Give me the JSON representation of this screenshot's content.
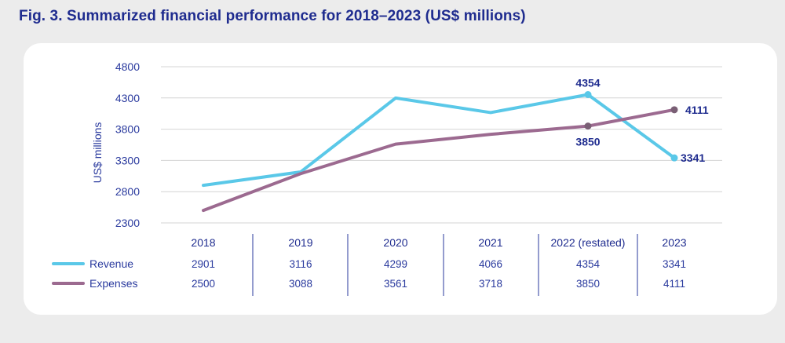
{
  "figure": {
    "title": "Fig. 3. Summarized financial performance for 2018–2023 (US$ millions)"
  },
  "colors": {
    "revenue": "#5ac8e8",
    "expenses": "#9c6a90",
    "expenses_marker": "#7a5f75",
    "text": "#2a3a9e",
    "gridline": "#d4d4d4",
    "divider": "#2a3a9e"
  },
  "chart_data": {
    "type": "line",
    "title": "Fig. 3. Summarized financial performance for 2018–2023 (US$ millions)",
    "ylabel": "US$ millions",
    "xlabel": "",
    "categories": [
      "2018",
      "2019",
      "2020",
      "2021",
      "2022 (restated)",
      "2023"
    ],
    "yticks": [
      2300,
      2800,
      3300,
      3800,
      4300,
      4800
    ],
    "ylim": [
      2300,
      4800
    ],
    "grid": true,
    "legend_position": "bottom-left (table rows)",
    "series": [
      {
        "name": "Revenue",
        "values": [
          2901,
          3116,
          4299,
          4066,
          4354,
          3341
        ]
      },
      {
        "name": "Expenses",
        "values": [
          2500,
          3088,
          3561,
          3718,
          3850,
          4111
        ]
      }
    ],
    "annotations": [
      {
        "series": "Revenue",
        "category": "2022 (restated)",
        "label": "4354"
      },
      {
        "series": "Revenue",
        "category": "2023",
        "label": "3341"
      },
      {
        "series": "Expenses",
        "category": "2022 (restated)",
        "label": "3850"
      },
      {
        "series": "Expenses",
        "category": "2023",
        "label": "4111"
      }
    ]
  }
}
